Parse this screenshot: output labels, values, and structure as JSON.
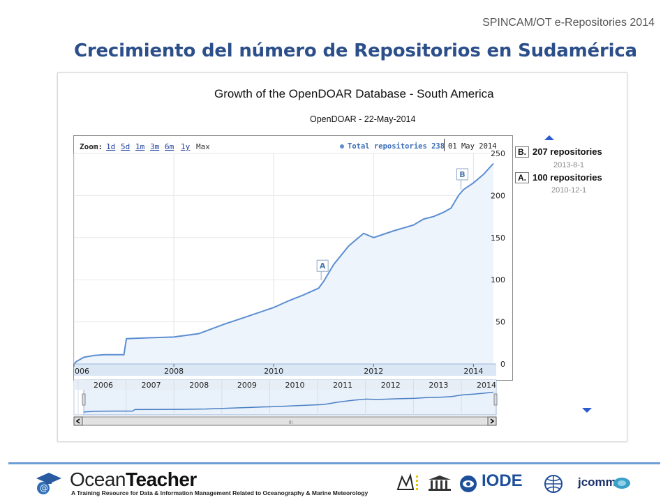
{
  "slide": {
    "header_tag": "SPINCAM/OT e-Repositories 2014",
    "title": "Crecimiento del número de Repositorios en Sudamérica"
  },
  "chart": {
    "title": "Growth of the OpenDOAR Database - South America",
    "subtitle": "OpenDOAR - 22-May-2014",
    "zoom_label": "Zoom:",
    "zoom_options": [
      "1d",
      "5d",
      "1m",
      "3m",
      "6m",
      "1y"
    ],
    "zoom_max": "Max",
    "legend_label": "Total repositories 238",
    "date_readout": "01 May 2014",
    "annotations": [
      {
        "marker": "B.",
        "text": "207 repositories",
        "date": "2013-8-1"
      },
      {
        "marker": "A.",
        "text": "100 repositories",
        "date": "2010-12-1"
      }
    ],
    "flag_a": "A",
    "flag_b": "B",
    "navigator_years": [
      "2006",
      "2007",
      "2008",
      "2009",
      "2010",
      "2011",
      "2012",
      "2013",
      "2014"
    ],
    "navigator_scroll_glyph": "III"
  },
  "chart_data": {
    "type": "area",
    "title": "Growth of the OpenDOAR Database - South America",
    "subtitle": "OpenDOAR - 22-May-2014",
    "xlabel": "",
    "ylabel": "",
    "x_ticks": [
      "006",
      "2008",
      "2010",
      "2012",
      "2014"
    ],
    "y_ticks": [
      0,
      50,
      100,
      150,
      200,
      250
    ],
    "ylim": [
      0,
      250
    ],
    "xlim": [
      2006.0,
      2014.4
    ],
    "grid": true,
    "legend": "top",
    "series": [
      {
        "name": "Total repositories",
        "color": "#5b8ed2",
        "x": [
          2006.0,
          2006.05,
          2006.2,
          2006.4,
          2006.6,
          2006.9,
          2007.0,
          2007.05,
          2007.5,
          2008.0,
          2008.5,
          2009.0,
          2009.5,
          2010.0,
          2010.3,
          2010.6,
          2010.9,
          2011.0,
          2011.2,
          2011.5,
          2011.8,
          2012.0,
          2012.1,
          2012.4,
          2012.8,
          2013.0,
          2013.2,
          2013.4,
          2013.55,
          2013.7,
          2013.8,
          2014.0,
          2014.2,
          2014.4
        ],
        "y": [
          0,
          3,
          8,
          10,
          11,
          11,
          11,
          30,
          31,
          32,
          36,
          47,
          57,
          67,
          75,
          82,
          90,
          98,
          118,
          140,
          155,
          150,
          152,
          158,
          165,
          172,
          175,
          180,
          185,
          200,
          207,
          215,
          225,
          238
        ]
      }
    ]
  },
  "footer": {
    "brand_main": "Ocean",
    "brand_bold": "Teacher",
    "tagline": "A Training Resource for Data & Information Management Related to Oceanography & Marine Meteorology",
    "partner_iode": "IODE",
    "partner_jcomm": "jcomm"
  }
}
